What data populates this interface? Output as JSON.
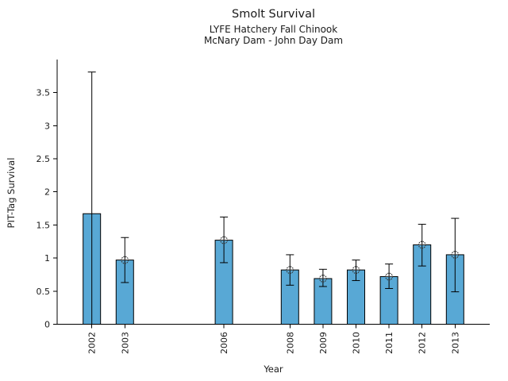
{
  "chart_data": {
    "type": "bar",
    "title": "Smolt Survival",
    "subtitle1": "LYFE Hatchery Fall Chinook",
    "subtitle2": "McNary Dam - John Day Dam",
    "xlabel": "Year",
    "ylabel": "PIT-Tag Survival",
    "categories": [
      "2002",
      "2003",
      "2006",
      "2008",
      "2009",
      "2010",
      "2011",
      "2012",
      "2013"
    ],
    "x": [
      2002,
      2003,
      2006,
      2008,
      2009,
      2010,
      2011,
      2012,
      2013
    ],
    "values": [
      1.67,
      0.97,
      1.27,
      0.82,
      0.69,
      0.82,
      0.72,
      1.2,
      1.05
    ],
    "error_low": [
      0.0,
      0.63,
      0.93,
      0.59,
      0.57,
      0.66,
      0.54,
      0.88,
      0.49
    ],
    "error_high": [
      3.81,
      1.31,
      1.62,
      1.05,
      0.83,
      0.97,
      0.91,
      1.51,
      1.6
    ],
    "markers": [
      false,
      true,
      true,
      true,
      true,
      true,
      true,
      true,
      true
    ],
    "ylim": [
      0,
      4.0
    ],
    "xlim": [
      2000.95,
      2014.05
    ],
    "yticks": [
      0,
      0.5,
      1,
      1.5,
      2,
      2.5,
      3,
      3.5
    ],
    "ytick_labels": [
      "0",
      "0.5",
      "1",
      "1.5",
      "2",
      "2.5",
      "3",
      "3.5"
    ],
    "grid": false,
    "legend": null,
    "bar_color": "#58a8d5",
    "bar_edge_color": "#000000",
    "error_color": "#000000",
    "marker_edge_color": "#3a3a3a",
    "axis_color": "#000000"
  }
}
